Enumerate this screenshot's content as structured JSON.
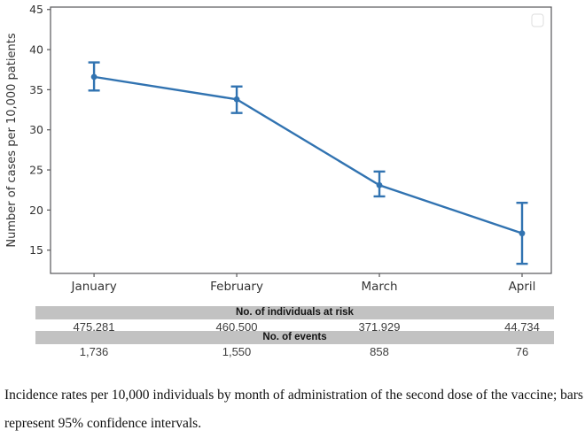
{
  "chart_data": {
    "type": "line",
    "title": "",
    "xlabel": "",
    "ylabel": "Number of cases per 10,000 patients",
    "categories": [
      "January",
      "February",
      "March",
      "April"
    ],
    "series": [
      {
        "name": "Incidence rate per 10,000 patients",
        "values": [
          36.6,
          33.8,
          23.1,
          17.1
        ],
        "ci_low": [
          34.9,
          32.1,
          21.7,
          13.3
        ],
        "ci_high": [
          38.4,
          35.4,
          24.8,
          20.9
        ],
        "color": "#3173b1"
      }
    ],
    "ylim": [
      12.1,
      45.3
    ],
    "yticks": [
      45,
      40,
      35,
      30,
      25,
      20,
      15
    ],
    "grid": false,
    "legend_position": "upper-right-empty-box",
    "frame_color": "#58585a",
    "tick_label_color": "#343434"
  },
  "table": {
    "header_individuals": "No. of individuals at risk",
    "individuals_at_risk": [
      "475,281",
      "460,500",
      "371,929",
      "44,734"
    ],
    "header_events": "No. of events",
    "events": [
      "1,736",
      "1,550",
      "858",
      "76"
    ],
    "band_color": "#c2c2c2"
  },
  "caption": {
    "line1": "Incidence rates per 10,000 individuals by month of administration of the second dose of the vaccine; bars",
    "line2": "represent 95% confidence intervals."
  }
}
